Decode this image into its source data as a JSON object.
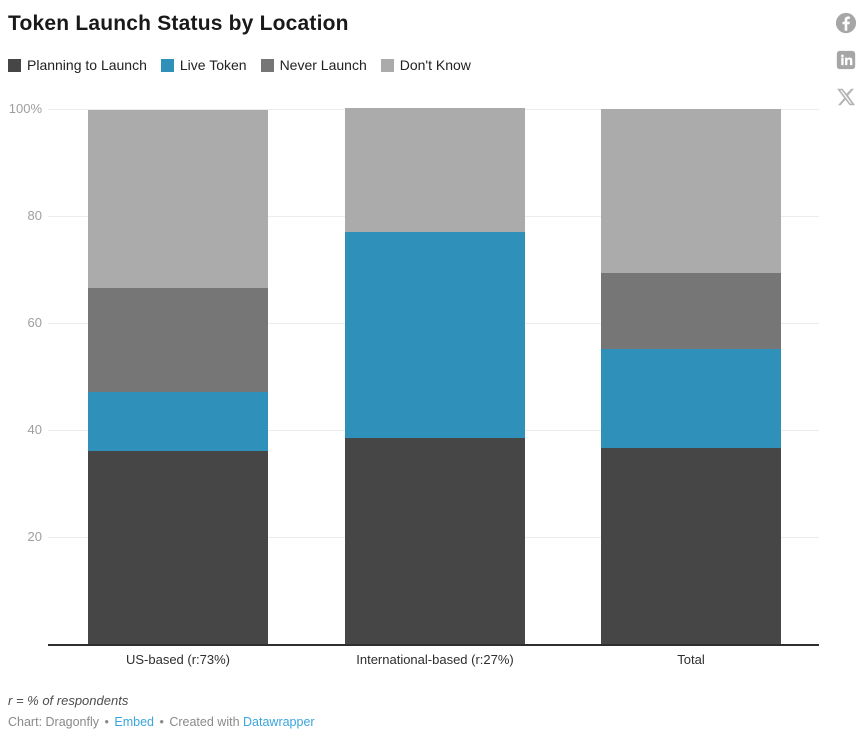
{
  "header": {
    "title": "Token Launch Status by Location"
  },
  "legend": [
    {
      "label": "Planning to Launch",
      "color": "#464646"
    },
    {
      "label": "Live Token",
      "color": "#2f91ba"
    },
    {
      "label": "Never Launch",
      "color": "#767676"
    },
    {
      "label": "Don't Know",
      "color": "#ababab"
    }
  ],
  "social": {
    "icons": [
      "facebook",
      "linkedin",
      "x-twitter"
    ],
    "color": "#a6a6a6"
  },
  "chart_data": {
    "type": "bar",
    "stacked": true,
    "unit": "%",
    "title": "Token Launch Status by Location",
    "categories": [
      "US-based (r:73%)",
      "International-based (r:27%)",
      "Total"
    ],
    "series": [
      {
        "name": "Planning to Launch",
        "color": "#464646",
        "values": [
          36.1,
          38.5,
          36.7
        ]
      },
      {
        "name": "Live Token",
        "color": "#2f91ba",
        "values": [
          11.1,
          38.5,
          18.4
        ]
      },
      {
        "name": "Never Launch",
        "color": "#767676",
        "values": [
          19.4,
          0.0,
          14.3
        ]
      },
      {
        "name": "Don't Know",
        "color": "#ababab",
        "values": [
          33.3,
          23.1,
          30.6
        ]
      }
    ],
    "ylim": [
      0,
      100
    ],
    "yticks": [
      {
        "value": 100,
        "label": "100%"
      },
      {
        "value": 80,
        "label": "80"
      },
      {
        "value": 60,
        "label": "60"
      },
      {
        "value": 40,
        "label": "40"
      },
      {
        "value": 20,
        "label": "20"
      }
    ],
    "grid": true,
    "legend_position": "top"
  },
  "footer": {
    "note": "r = % of respondents",
    "credit": {
      "chart_by": "Chart: Dragonfly",
      "bullet": "•",
      "embed": "Embed",
      "created_with": "Created with",
      "datawrapper": "Datawrapper"
    }
  }
}
